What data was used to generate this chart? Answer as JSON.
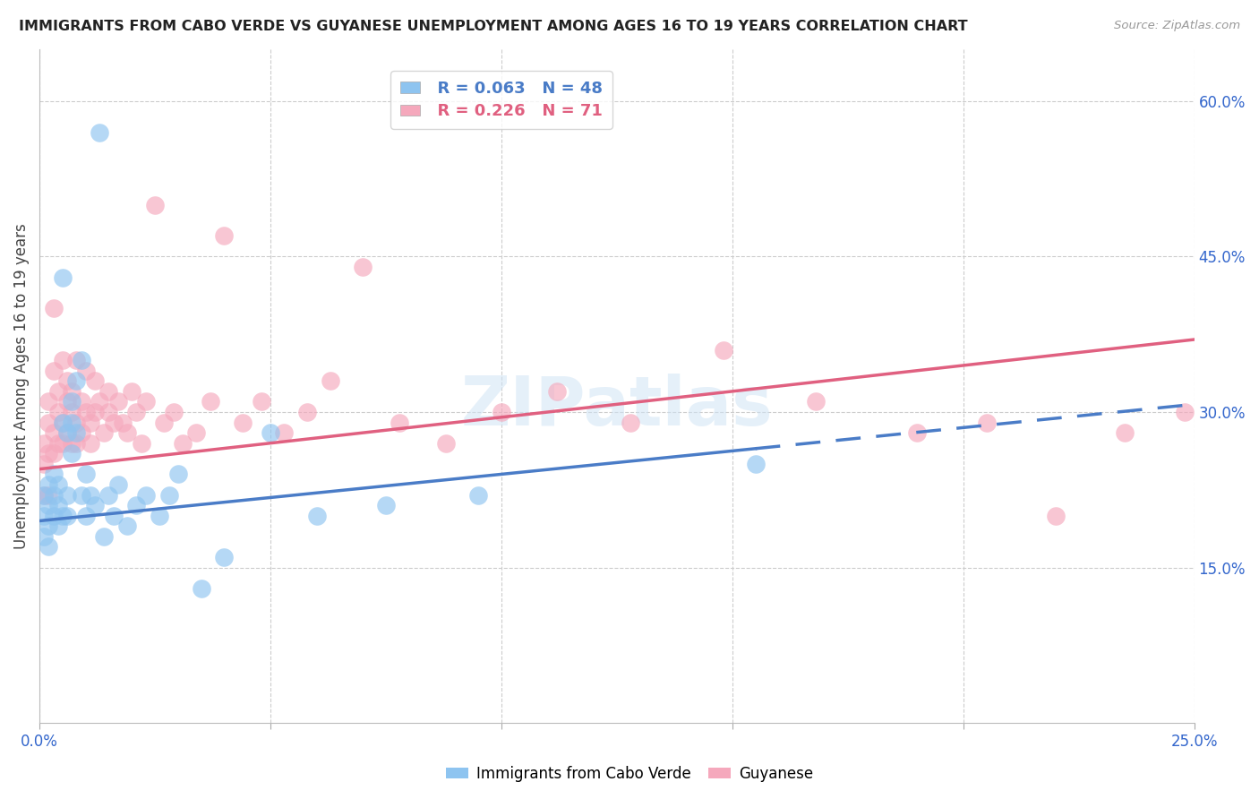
{
  "title": "IMMIGRANTS FROM CABO VERDE VS GUYANESE UNEMPLOYMENT AMONG AGES 16 TO 19 YEARS CORRELATION CHART",
  "source": "Source: ZipAtlas.com",
  "ylabel": "Unemployment Among Ages 16 to 19 years",
  "xlim": [
    0.0,
    0.25
  ],
  "ylim": [
    0.0,
    0.65
  ],
  "yticks_right": [
    0.15,
    0.3,
    0.45,
    0.6
  ],
  "ytick_labels_right": [
    "15.0%",
    "30.0%",
    "45.0%",
    "60.0%"
  ],
  "xticks": [
    0.0,
    0.05,
    0.1,
    0.15,
    0.2,
    0.25
  ],
  "xtick_labels": [
    "0.0%",
    "",
    "",
    "",
    "",
    "25.0%"
  ],
  "legend_r1": "R = 0.063",
  "legend_n1": "N = 48",
  "legend_r2": "R = 0.226",
  "legend_n2": "N = 71",
  "color_blue": "#8EC4F0",
  "color_pink": "#F5A8BC",
  "color_blue_line": "#4A7CC7",
  "color_pink_line": "#E06080",
  "watermark": "ZIPatlas",
  "solid_cutoff_cv": 0.155,
  "cabo_verde_x": [
    0.001,
    0.001,
    0.001,
    0.002,
    0.002,
    0.002,
    0.002,
    0.003,
    0.003,
    0.003,
    0.004,
    0.004,
    0.004,
    0.005,
    0.005,
    0.005,
    0.006,
    0.006,
    0.006,
    0.007,
    0.007,
    0.007,
    0.008,
    0.008,
    0.009,
    0.009,
    0.01,
    0.01,
    0.011,
    0.012,
    0.013,
    0.014,
    0.015,
    0.016,
    0.017,
    0.019,
    0.021,
    0.023,
    0.026,
    0.028,
    0.03,
    0.035,
    0.04,
    0.05,
    0.06,
    0.075,
    0.095,
    0.155
  ],
  "cabo_verde_y": [
    0.2,
    0.22,
    0.18,
    0.21,
    0.17,
    0.23,
    0.19,
    0.2,
    0.22,
    0.24,
    0.21,
    0.23,
    0.19,
    0.29,
    0.43,
    0.2,
    0.28,
    0.22,
    0.2,
    0.29,
    0.31,
    0.26,
    0.28,
    0.33,
    0.22,
    0.35,
    0.2,
    0.24,
    0.22,
    0.21,
    0.57,
    0.18,
    0.22,
    0.2,
    0.23,
    0.19,
    0.21,
    0.22,
    0.2,
    0.22,
    0.24,
    0.13,
    0.16,
    0.28,
    0.2,
    0.21,
    0.22,
    0.25
  ],
  "guyanese_x": [
    0.001,
    0.001,
    0.001,
    0.002,
    0.002,
    0.002,
    0.002,
    0.003,
    0.003,
    0.003,
    0.003,
    0.004,
    0.004,
    0.004,
    0.005,
    0.005,
    0.005,
    0.006,
    0.006,
    0.006,
    0.007,
    0.007,
    0.007,
    0.008,
    0.008,
    0.008,
    0.009,
    0.009,
    0.01,
    0.01,
    0.011,
    0.011,
    0.012,
    0.012,
    0.013,
    0.014,
    0.015,
    0.015,
    0.016,
    0.017,
    0.018,
    0.019,
    0.02,
    0.021,
    0.022,
    0.023,
    0.025,
    0.027,
    0.029,
    0.031,
    0.034,
    0.037,
    0.04,
    0.044,
    0.048,
    0.053,
    0.058,
    0.063,
    0.07,
    0.078,
    0.088,
    0.1,
    0.112,
    0.128,
    0.148,
    0.168,
    0.19,
    0.205,
    0.22,
    0.235,
    0.248
  ],
  "guyanese_y": [
    0.25,
    0.27,
    0.22,
    0.29,
    0.31,
    0.26,
    0.22,
    0.28,
    0.34,
    0.4,
    0.26,
    0.32,
    0.27,
    0.3,
    0.35,
    0.29,
    0.27,
    0.31,
    0.28,
    0.33,
    0.3,
    0.27,
    0.32,
    0.29,
    0.27,
    0.35,
    0.31,
    0.28,
    0.3,
    0.34,
    0.29,
    0.27,
    0.3,
    0.33,
    0.31,
    0.28,
    0.3,
    0.32,
    0.29,
    0.31,
    0.29,
    0.28,
    0.32,
    0.3,
    0.27,
    0.31,
    0.5,
    0.29,
    0.3,
    0.27,
    0.28,
    0.31,
    0.47,
    0.29,
    0.31,
    0.28,
    0.3,
    0.33,
    0.44,
    0.29,
    0.27,
    0.3,
    0.32,
    0.29,
    0.36,
    0.31,
    0.28,
    0.29,
    0.2,
    0.28,
    0.3
  ]
}
